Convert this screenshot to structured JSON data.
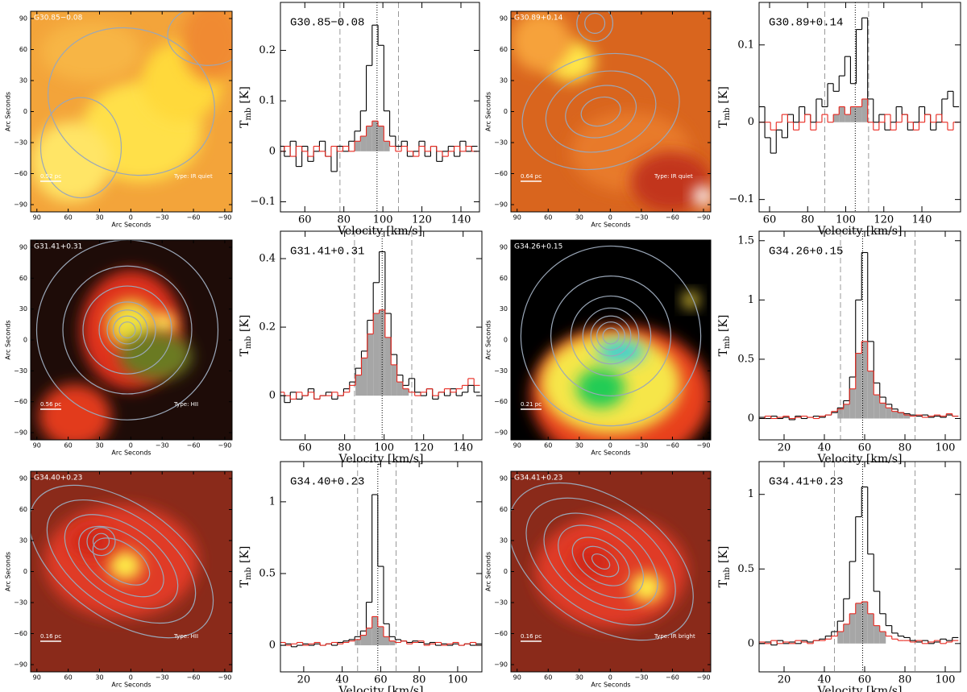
{
  "chart_data": [
    {
      "type": "image",
      "title": "G30.85−0.08",
      "scale_label": "0.52 pc",
      "class_label": "Type: IR quiet",
      "xlabel": "Arc Seconds",
      "ylabel": "Arc Seconds",
      "xlim": [
        96,
        -97
      ],
      "ylim": [
        -97,
        97
      ],
      "xticks": [
        90,
        60,
        30,
        0,
        {
          "value": -30,
          "label": "−30"
        },
        {
          "value": -60,
          "label": "−60"
        },
        {
          "value": -90,
          "label": "−90"
        }
      ],
      "yticks": [
        {
          "value": -90,
          "label": "−90"
        },
        {
          "value": -60,
          "label": "−60"
        },
        {
          "value": -30,
          "label": "−30"
        },
        0,
        30,
        60,
        90
      ]
    },
    {
      "type": "step",
      "title": "G30.85−0.08",
      "xlabel": "Velocity [km/s]",
      "ylabel": "T",
      "ylabel_sub": "mb",
      "ylabel_unit": "[K]",
      "xlim": [
        47.5,
        149.5
      ],
      "ylim": [
        -0.12,
        0.295
      ],
      "xticks": [
        60,
        80,
        100,
        120,
        140
      ],
      "yticks": [
        {
          "value": -0.1,
          "label": "−0.1"
        },
        0,
        0.1,
        0.2
      ],
      "x": [
        48,
        51,
        54,
        57,
        60,
        63,
        66,
        69,
        72,
        75,
        78,
        81,
        84,
        87,
        90,
        93,
        96,
        99,
        102,
        105,
        108,
        111,
        114,
        117,
        120,
        123,
        126,
        129,
        132,
        135,
        138,
        141,
        144,
        147
      ],
      "series": [
        {
          "color": "#000000",
          "values": [
            0.01,
            -0.01,
            0.02,
            -0.03,
            0.01,
            -0.02,
            0.0,
            0.02,
            -0.01,
            -0.04,
            0.01,
            0.0,
            0.02,
            0.04,
            0.08,
            0.17,
            0.25,
            0.21,
            0.08,
            0.03,
            0.01,
            0.02,
            -0.01,
            0.0,
            0.02,
            -0.01,
            0.01,
            -0.02,
            0.0,
            0.01,
            -0.01,
            0.02,
            0.0,
            0.01
          ]
        },
        {
          "color": "#e8271e",
          "values": [
            0.0,
            0.01,
            -0.01,
            0.01,
            0.0,
            -0.01,
            0.01,
            0.0,
            -0.01,
            0.01,
            0.0,
            0.01,
            0.0,
            0.02,
            0.03,
            0.05,
            0.06,
            0.05,
            0.02,
            0.01,
            0.0,
            0.01,
            0.0,
            -0.01,
            0.01,
            0.0,
            0.01,
            0.0,
            -0.01,
            0.0,
            0.01,
            0.0,
            0.01,
            0.0
          ]
        }
      ],
      "fill_range": [
        86,
        104
      ],
      "fill_color": "#a6a6a6",
      "vlines": [
        78,
        108
      ],
      "center": 97
    },
    {
      "type": "image",
      "title": "G30.89+0.14",
      "scale_label": "0.64 pc",
      "class_label": "Type: IR quiet",
      "xlabel": "Arc Seconds",
      "ylabel": "Arc Seconds",
      "xlim": [
        96,
        -97
      ],
      "ylim": [
        -97,
        97
      ],
      "xticks": [
        90,
        60,
        30,
        0,
        {
          "value": -30,
          "label": "−30"
        },
        {
          "value": -60,
          "label": "−60"
        },
        {
          "value": -90,
          "label": "−90"
        }
      ],
      "yticks": [
        {
          "value": -90,
          "label": "−90"
        },
        {
          "value": -60,
          "label": "−60"
        },
        {
          "value": -30,
          "label": "−30"
        },
        0,
        30,
        60,
        90
      ]
    },
    {
      "type": "step",
      "title": "G30.89+0.14",
      "xlabel": "Velocity [km/s]",
      "ylabel": "T",
      "ylabel_sub": "mb",
      "ylabel_unit": "[K]",
      "xlim": [
        54.5,
        160.3
      ],
      "ylim": [
        -0.116,
        0.155
      ],
      "xticks": [
        60,
        80,
        100,
        120,
        140
      ],
      "yticks": [
        {
          "value": -0.1,
          "label": "−0.1"
        },
        0,
        0.1
      ],
      "x": [
        56,
        59,
        62,
        65,
        68,
        71,
        74,
        77,
        80,
        83,
        86,
        89,
        92,
        95,
        98,
        101,
        104,
        107,
        110,
        113,
        116,
        119,
        122,
        125,
        128,
        131,
        134,
        137,
        140,
        143,
        146,
        149,
        152,
        155,
        158
      ],
      "series": [
        {
          "color": "#000000",
          "values": [
            0.02,
            -0.02,
            -0.04,
            -0.01,
            -0.02,
            0.01,
            0.0,
            0.02,
            0.01,
            0.0,
            0.03,
            0.02,
            0.05,
            0.04,
            0.06,
            0.085,
            0.05,
            0.12,
            0.135,
            0.03,
            0.0,
            0.01,
            -0.01,
            0.0,
            0.02,
            0.01,
            -0.01,
            0.0,
            0.02,
            0.01,
            -0.01,
            0.0,
            0.03,
            0.04,
            0.02
          ]
        },
        {
          "color": "#e8271e",
          "values": [
            0.0,
            0.0,
            -0.01,
            0.0,
            0.01,
            0.0,
            -0.01,
            0.0,
            0.01,
            -0.01,
            0.0,
            0.01,
            0.0,
            0.01,
            0.02,
            0.01,
            0.02,
            0.02,
            0.03,
            0.0,
            -0.01,
            0.0,
            0.01,
            -0.01,
            0.0,
            0.01,
            0.0,
            -0.01,
            0.0,
            0.01,
            0.0,
            0.01,
            0.0,
            -0.01,
            0.0
          ]
        }
      ],
      "fill_range": [
        94,
        111
      ],
      "fill_color": "#a6a6a6",
      "vlines": [
        89,
        112
      ],
      "center": 105
    },
    {
      "type": "image",
      "title": "G31.41+0.31",
      "scale_label": "0.56 pc",
      "class_label": "Type: HII",
      "xlabel": "Arc Seconds",
      "ylabel": "Arc Seconds",
      "xlim": [
        96,
        -97
      ],
      "ylim": [
        -97,
        97
      ],
      "xticks": [
        90,
        60,
        30,
        0,
        {
          "value": -30,
          "label": "−30"
        },
        {
          "value": -60,
          "label": "−60"
        },
        {
          "value": -90,
          "label": "−90"
        }
      ],
      "yticks": [
        {
          "value": -90,
          "label": "−90"
        },
        {
          "value": -60,
          "label": "−60"
        },
        {
          "value": -30,
          "label": "−30"
        },
        0,
        30,
        60,
        90
      ]
    },
    {
      "type": "step",
      "title": "G31.41+0.31",
      "xlabel": "Velocity [km/s]",
      "ylabel": "T",
      "ylabel_sub": "mb",
      "ylabel_unit": "[K]",
      "xlim": [
        47.5,
        149.5
      ],
      "ylim": [
        -0.129,
        0.48
      ],
      "xticks": [
        60,
        80,
        100,
        120,
        140
      ],
      "yticks": [
        0,
        0.2,
        0.4
      ],
      "x": [
        48,
        51,
        54,
        57,
        60,
        63,
        66,
        69,
        72,
        75,
        78,
        81,
        84,
        87,
        90,
        93,
        96,
        99,
        102,
        105,
        108,
        111,
        114,
        117,
        120,
        123,
        126,
        129,
        132,
        135,
        138,
        141,
        144,
        147
      ],
      "series": [
        {
          "color": "#000000",
          "values": [
            0.0,
            -0.02,
            0.01,
            -0.01,
            0.0,
            0.02,
            -0.01,
            0.0,
            0.01,
            -0.01,
            0.0,
            0.02,
            0.04,
            0.08,
            0.13,
            0.22,
            0.33,
            0.42,
            0.24,
            0.12,
            0.06,
            0.03,
            0.05,
            0.01,
            0.0,
            0.02,
            -0.01,
            0.01,
            0.0,
            0.02,
            0.0,
            0.01,
            0.03,
            0.01
          ]
        },
        {
          "color": "#e8271e",
          "values": [
            0.01,
            0.0,
            -0.01,
            0.01,
            0.0,
            0.01,
            -0.01,
            0.0,
            0.0,
            0.01,
            0.0,
            0.01,
            0.03,
            0.06,
            0.11,
            0.18,
            0.24,
            0.25,
            0.17,
            0.09,
            0.04,
            0.02,
            0.01,
            0.0,
            0.01,
            0.02,
            0.0,
            0.01,
            0.02,
            0.01,
            0.02,
            0.03,
            0.05,
            0.03
          ]
        }
      ],
      "fill_range": [
        86,
        112
      ],
      "fill_color": "#a6a6a6",
      "vlines": [
        85,
        114
      ],
      "center": 99
    },
    {
      "type": "image",
      "title": "G34.26+0.15",
      "scale_label": "0.21 pc",
      "xlabel": "Arc Seconds",
      "ylabel": "Arc Seconds",
      "xlim": [
        96,
        -97
      ],
      "ylim": [
        -97,
        97
      ],
      "xticks": [
        90,
        60,
        30,
        0,
        {
          "value": -30,
          "label": "−30"
        },
        {
          "value": -60,
          "label": "−60"
        },
        {
          "value": -90,
          "label": "−90"
        }
      ],
      "yticks": [
        {
          "value": -90,
          "label": "−90"
        },
        {
          "value": -60,
          "label": "−60"
        },
        {
          "value": -30,
          "label": "−30"
        },
        0,
        30,
        60,
        90
      ]
    },
    {
      "type": "step",
      "title": "G34.26+0.15",
      "xlabel": "Velocity [km/s]",
      "ylabel": "T",
      "ylabel_sub": "mb",
      "ylabel_unit": "[K]",
      "xlim": [
        7.6,
        107.6
      ],
      "ylim": [
        -0.18,
        1.58
      ],
      "xticks": [
        20,
        40,
        60,
        80,
        100
      ],
      "yticks": [
        0,
        0.5,
        1,
        1.5
      ],
      "x": [
        9,
        12,
        15,
        18,
        21,
        24,
        27,
        30,
        33,
        36,
        39,
        42,
        45,
        48,
        51,
        54,
        57,
        60,
        63,
        66,
        69,
        72,
        75,
        78,
        81,
        84,
        87,
        90,
        93,
        96,
        99,
        102,
        105
      ],
      "series": [
        {
          "color": "#000000",
          "values": [
            0.01,
            0.0,
            0.02,
            0.0,
            0.01,
            -0.01,
            0.02,
            0.0,
            0.01,
            0.02,
            0.01,
            0.03,
            0.05,
            0.09,
            0.15,
            0.35,
            1.0,
            1.4,
            0.65,
            0.3,
            0.18,
            0.12,
            0.08,
            0.05,
            0.04,
            0.03,
            0.02,
            0.03,
            0.01,
            0.02,
            0.01,
            0.03,
            0.02
          ]
        },
        {
          "color": "#e8271e",
          "values": [
            0.0,
            0.02,
            0.0,
            0.01,
            0.02,
            0.0,
            0.01,
            0.02,
            0.01,
            0.0,
            0.02,
            0.03,
            0.06,
            0.08,
            0.12,
            0.25,
            0.55,
            0.65,
            0.4,
            0.2,
            0.13,
            0.09,
            0.06,
            0.05,
            0.03,
            0.02,
            0.03,
            0.01,
            0.02,
            0.03,
            0.02,
            0.04,
            0.02
          ]
        }
      ],
      "fill_range": [
        46,
        82
      ],
      "fill_color": "#a6a6a6",
      "vlines": [
        48,
        85
      ],
      "center": 59
    },
    {
      "type": "image",
      "title": "G34.40+0.23",
      "scale_label": "0.16 pc",
      "class_label": "Type: HII",
      "xlabel": "Arc Seconds",
      "ylabel": "Arc Seconds",
      "xlim": [
        96,
        -97
      ],
      "ylim": [
        -97,
        97
      ],
      "xticks": [
        90,
        60,
        30,
        0,
        {
          "value": -30,
          "label": "−30"
        },
        {
          "value": -60,
          "label": "−60"
        },
        {
          "value": -90,
          "label": "−90"
        }
      ],
      "yticks": [
        {
          "value": -90,
          "label": "−90"
        },
        {
          "value": -60,
          "label": "−60"
        },
        {
          "value": -30,
          "label": "−30"
        },
        0,
        30,
        60,
        90
      ]
    },
    {
      "type": "step",
      "title": "G34.40+0.23",
      "xlabel": "Velocity [km/s]",
      "ylabel": "T",
      "ylabel_sub": "mb",
      "ylabel_unit": "[K]",
      "xlim": [
        7.9,
        112.6
      ],
      "ylim": [
        -0.185,
        1.28
      ],
      "xticks": [
        20,
        40,
        60,
        80,
        100
      ],
      "yticks": [
        0,
        0.5,
        1
      ],
      "x": [
        9,
        12,
        15,
        18,
        21,
        24,
        27,
        30,
        33,
        36,
        39,
        42,
        45,
        48,
        51,
        54,
        57,
        60,
        63,
        66,
        69,
        72,
        75,
        78,
        81,
        84,
        87,
        90,
        93,
        96,
        99,
        102,
        105,
        108,
        111
      ],
      "series": [
        {
          "color": "#000000",
          "values": [
            0.0,
            0.01,
            -0.01,
            0.0,
            0.01,
            0.0,
            0.01,
            0.0,
            0.01,
            0.0,
            0.02,
            0.03,
            0.04,
            0.06,
            0.1,
            0.3,
            1.05,
            0.55,
            0.15,
            0.06,
            0.04,
            0.03,
            0.02,
            0.03,
            0.02,
            0.01,
            0.02,
            0.0,
            0.01,
            0.0,
            0.01,
            0.0,
            0.01,
            0.0,
            0.01
          ]
        },
        {
          "color": "#e8271e",
          "values": [
            0.02,
            0.0,
            0.01,
            0.02,
            0.0,
            0.01,
            0.02,
            0.0,
            0.01,
            0.02,
            0.01,
            0.02,
            0.03,
            0.04,
            0.07,
            0.12,
            0.2,
            0.13,
            0.06,
            0.03,
            0.02,
            0.03,
            0.01,
            0.02,
            0.03,
            0.0,
            0.01,
            0.02,
            0.0,
            0.01,
            0.02,
            0.0,
            0.01,
            0.02,
            0.0
          ]
        }
      ],
      "fill_range": [
        48,
        66
      ],
      "fill_color": "#a6a6a6",
      "vlines": [
        48,
        68
      ],
      "center": 58.5
    },
    {
      "type": "image",
      "title": "G34.41+0.23",
      "scale_label": "0.16 pc",
      "class_label": "Type: IR bright",
      "xlabel": "Arc Seconds",
      "ylabel": "Arc Seconds",
      "xlim": [
        96,
        -97
      ],
      "ylim": [
        -97,
        97
      ],
      "xticks": [
        90,
        60,
        30,
        0,
        {
          "value": -30,
          "label": "−30"
        },
        {
          "value": -60,
          "label": "−60"
        },
        {
          "value": -90,
          "label": "−90"
        }
      ],
      "yticks": [
        {
          "value": -90,
          "label": "−90"
        },
        {
          "value": -60,
          "label": "−60"
        },
        {
          "value": -30,
          "label": "−30"
        },
        0,
        30,
        60,
        90
      ]
    },
    {
      "type": "step",
      "title": "G34.41+0.23",
      "xlabel": "Velocity [km/s]",
      "ylabel": "T",
      "ylabel_sub": "mb",
      "ylabel_unit": "[K]",
      "xlim": [
        7.6,
        107.6
      ],
      "ylim": [
        -0.19,
        1.22
      ],
      "xticks": [
        20,
        40,
        60,
        80,
        100
      ],
      "yticks": [
        0,
        0.5,
        1
      ],
      "x": [
        9,
        12,
        15,
        18,
        21,
        24,
        27,
        30,
        33,
        36,
        39,
        42,
        45,
        48,
        51,
        54,
        57,
        60,
        63,
        66,
        69,
        72,
        75,
        78,
        81,
        84,
        87,
        90,
        93,
        96,
        99,
        102,
        105
      ],
      "series": [
        {
          "color": "#000000",
          "values": [
            0.0,
            0.01,
            -0.01,
            0.02,
            0.0,
            0.01,
            0.0,
            0.02,
            0.01,
            0.02,
            0.03,
            0.05,
            0.08,
            0.15,
            0.3,
            0.55,
            0.85,
            1.05,
            0.6,
            0.35,
            0.2,
            0.12,
            0.07,
            0.05,
            0.04,
            0.02,
            0.01,
            0.02,
            0.0,
            0.01,
            0.03,
            0.02,
            0.04
          ]
        },
        {
          "color": "#e8271e",
          "values": [
            0.01,
            0.0,
            0.02,
            0.0,
            0.01,
            0.0,
            0.02,
            0.01,
            0.0,
            0.02,
            0.02,
            0.03,
            0.05,
            0.08,
            0.13,
            0.2,
            0.27,
            0.28,
            0.2,
            0.12,
            0.08,
            0.05,
            0.03,
            0.02,
            0.02,
            0.01,
            0.02,
            0.0,
            0.01,
            0.02,
            0.0,
            0.01,
            0.02
          ]
        }
      ],
      "fill_range": [
        46,
        70
      ],
      "fill_color": "#a6a6a6",
      "vlines": [
        45,
        85
      ],
      "center": 59
    }
  ]
}
